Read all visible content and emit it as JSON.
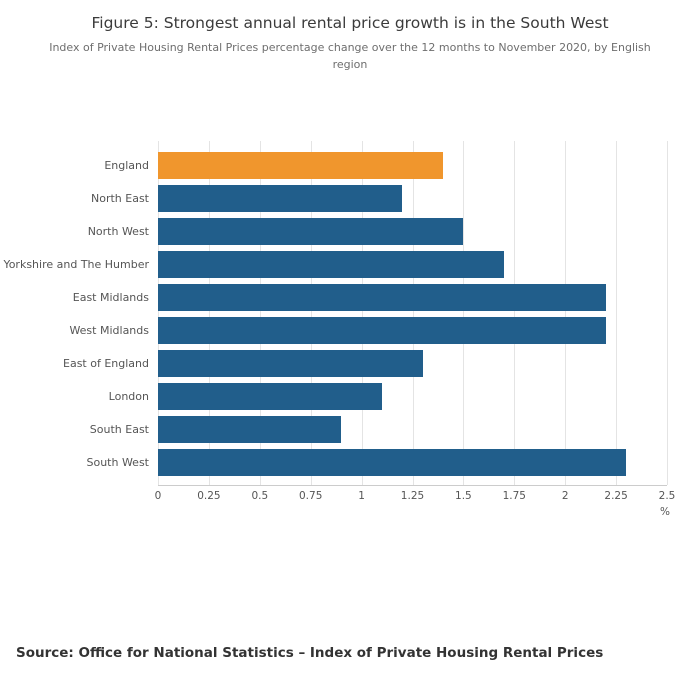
{
  "header": {
    "title": "Figure 5: Strongest annual rental price growth is in the South West",
    "subtitle": "Index of Private Housing Rental Prices percentage change over the 12 months to November 2020, by English region"
  },
  "chart_data": {
    "type": "bar",
    "orientation": "horizontal",
    "title": "Figure 5: Strongest annual rental price growth is in the South West",
    "subtitle": "Index of Private Housing Rental Prices percentage change over the 12 months to November 2020, by English region",
    "categories": [
      "England",
      "North East",
      "North West",
      "Yorkshire and The Humber",
      "East Midlands",
      "West Midlands",
      "East of England",
      "London",
      "South East",
      "South West"
    ],
    "values": [
      1.4,
      1.2,
      1.5,
      1.7,
      2.2,
      2.2,
      1.3,
      1.1,
      0.9,
      2.3
    ],
    "bar_color": "#215e8b",
    "highlight_index": 0,
    "highlight_color": "#f0962d",
    "xlabel": "%",
    "ylabel": "",
    "xlim": [
      0,
      2.5
    ],
    "xticks": [
      0,
      0.25,
      0.5,
      0.75,
      1,
      1.25,
      1.5,
      1.75,
      2,
      2.25,
      2.5
    ],
    "xtick_labels": [
      "0",
      "0.25",
      "0.5",
      "0.75",
      "1",
      "1.25",
      "1.5",
      "1.75",
      "2",
      "2.25",
      "2.5"
    ],
    "grid": true,
    "legend": "none"
  },
  "footer": {
    "source": "Source: Office for National Statistics – Index of Private Housing Rental Prices"
  }
}
